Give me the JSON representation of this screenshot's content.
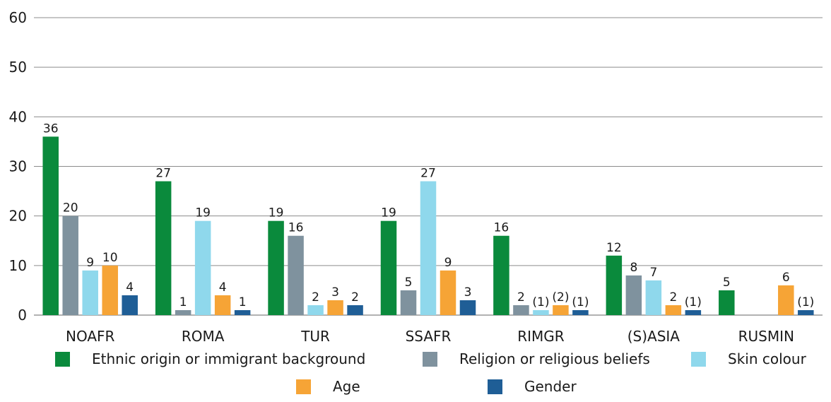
{
  "chart_data": {
    "type": "bar",
    "title": "",
    "xlabel": "",
    "ylabel": "",
    "ylim": [
      0,
      60
    ],
    "yticks": [
      0,
      10,
      20,
      30,
      40,
      50,
      60
    ],
    "grid": true,
    "legend_position": "bottom",
    "categories": [
      "NOAFR",
      "ROMA",
      "TUR",
      "SSAFR",
      "RIMGR",
      "(S)ASIA",
      "RUSMIN"
    ],
    "series": [
      {
        "name": "Ethnic origin or immigrant background",
        "color": "#0a8a3c",
        "values": [
          36,
          27,
          19,
          19,
          16,
          12,
          5
        ],
        "labels": [
          "36",
          "27",
          "19",
          "19",
          "16",
          "12",
          "5"
        ]
      },
      {
        "name": "Religion or religious beliefs",
        "color": "#7f929e",
        "values": [
          20,
          1,
          16,
          5,
          2,
          8,
          null
        ],
        "labels": [
          "20",
          "1",
          "16",
          "5",
          "2",
          "8",
          ""
        ]
      },
      {
        "name": "Skin colour",
        "color": "#8fd8ec",
        "values": [
          9,
          19,
          2,
          27,
          1,
          7,
          null
        ],
        "labels": [
          "9",
          "19",
          "2",
          "27",
          "(1)",
          "7",
          ""
        ]
      },
      {
        "name": "Age",
        "color": "#f6a436",
        "values": [
          10,
          4,
          3,
          9,
          2,
          2,
          6
        ],
        "labels": [
          "10",
          "4",
          "3",
          "9",
          "(2)",
          "2",
          "6"
        ]
      },
      {
        "name": "Gender",
        "color": "#1f5e96",
        "values": [
          4,
          1,
          2,
          3,
          1,
          1,
          1
        ],
        "labels": [
          "4",
          "1",
          "2",
          "3",
          "(1)",
          "(1)",
          "(1)"
        ]
      }
    ]
  }
}
